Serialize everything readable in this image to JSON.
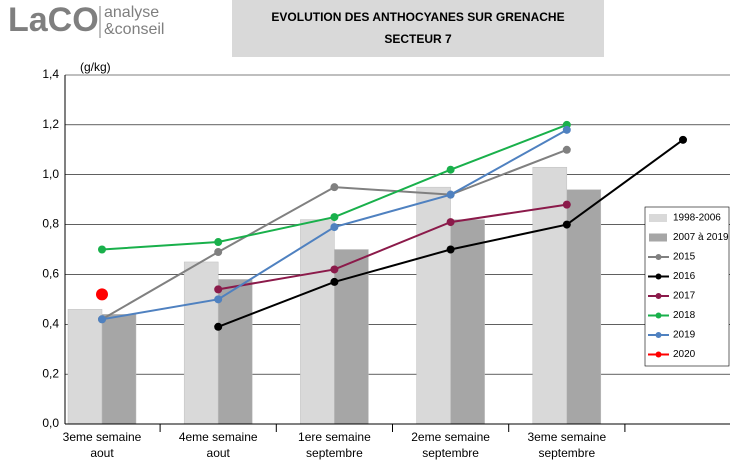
{
  "logo": {
    "brand": "LaCO",
    "line1": "analyse",
    "line2": "&conseil"
  },
  "chart_data": {
    "type": "bar_line",
    "title": "EVOLUTION DES ANTHOCYANES SUR GRENACHE",
    "subtitle": "SECTEUR 7",
    "y_label": "(g/kg)",
    "categories": [
      "3eme semaine aout",
      "4eme semaine aout",
      "1ere semaine septembre",
      "2eme semaine septembre",
      "3eme semaine septembre",
      null
    ],
    "ylim": [
      0,
      1.4
    ],
    "yticks": [
      {
        "value": 0,
        "label": "0,0"
      },
      {
        "value": 0.2,
        "label": "0,2"
      },
      {
        "value": 0.4,
        "label": "0,4"
      },
      {
        "value": 0.6,
        "label": "0,6"
      },
      {
        "value": 0.8,
        "label": "0,8"
      },
      {
        "value": 1.0,
        "label": "1,0"
      },
      {
        "value": 1.2,
        "label": "1,2"
      },
      {
        "value": 1.4,
        "label": "1,4"
      }
    ],
    "grid": true,
    "legend": "right",
    "series": [
      {
        "name": "1998-2006",
        "style": "bar",
        "color": "#d9d9d9",
        "values": [
          0.46,
          0.65,
          0.82,
          0.95,
          1.03,
          null
        ]
      },
      {
        "name": "2007 à 2019",
        "style": "bar",
        "color": "#a6a6a6",
        "values": [
          0.44,
          0.58,
          0.7,
          0.82,
          0.94,
          null
        ]
      },
      {
        "name": "2015",
        "style": "line",
        "color": "#808080",
        "values": [
          0.42,
          0.69,
          0.95,
          0.92,
          1.1,
          null
        ]
      },
      {
        "name": "2016",
        "style": "line",
        "color": "#000000",
        "values": [
          null,
          0.39,
          0.57,
          0.7,
          0.8,
          1.14
        ]
      },
      {
        "name": "2017",
        "style": "line",
        "color": "#8b1a4a",
        "values": [
          null,
          0.54,
          0.62,
          0.81,
          0.88,
          null
        ]
      },
      {
        "name": "2018",
        "style": "line",
        "color": "#19b04b",
        "values": [
          0.7,
          0.73,
          0.83,
          1.02,
          1.2,
          null
        ]
      },
      {
        "name": "2019",
        "style": "line",
        "color": "#4f81c0",
        "values": [
          0.42,
          0.5,
          0.79,
          0.92,
          1.18,
          null
        ]
      },
      {
        "name": "2020",
        "style": "line",
        "color": "#ff0000",
        "values": [
          0.52,
          null,
          null,
          null,
          null,
          null
        ]
      }
    ]
  }
}
